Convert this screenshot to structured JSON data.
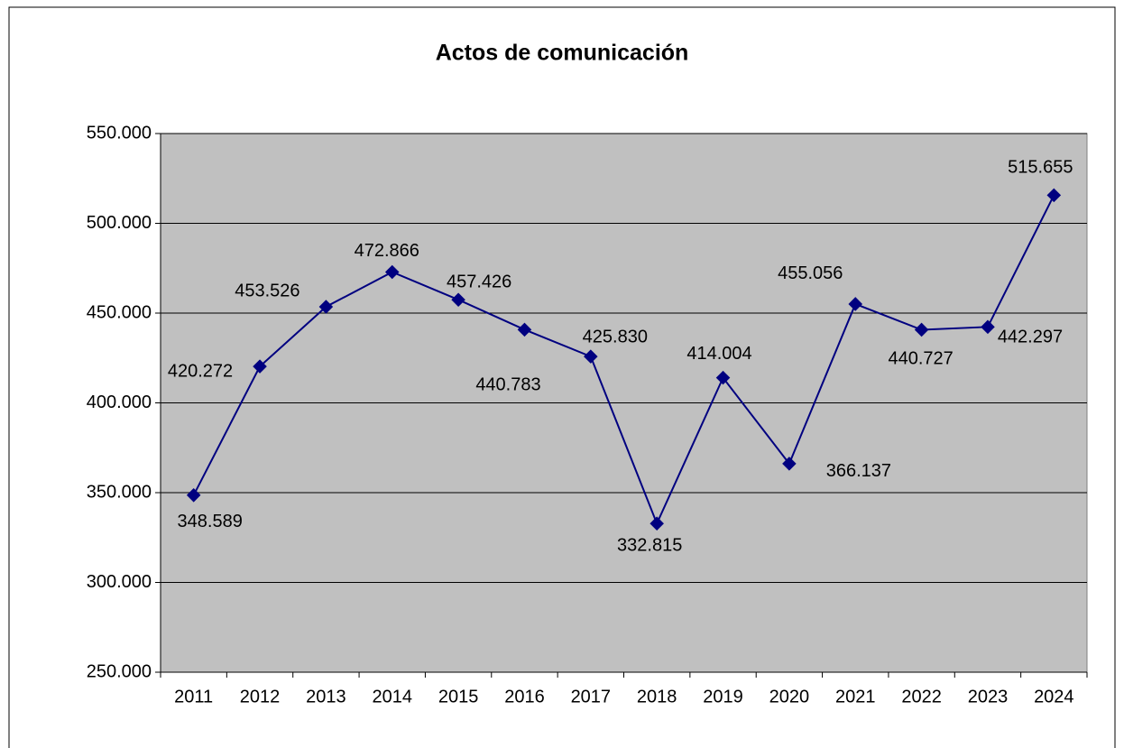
{
  "chart_data": {
    "type": "line",
    "title": "Actos de comunicación",
    "categories": [
      "2011",
      "2012",
      "2013",
      "2014",
      "2015",
      "2016",
      "2017",
      "2018",
      "2019",
      "2020",
      "2021",
      "2022",
      "2023",
      "2024"
    ],
    "series": [
      {
        "color": "#000080",
        "values": [
          348589,
          420272,
          453526,
          472866,
          457426,
          440783,
          425830,
          332815,
          414004,
          366137,
          455056,
          440727,
          442297,
          515655
        ],
        "value_labels": [
          "348.589",
          "420.272",
          "453.526",
          "472.866",
          "457.426",
          "440.783",
          "425.830",
          "332.815",
          "414.004",
          "366.137",
          "455.056",
          "440.727",
          "442.297",
          "515.655"
        ]
      }
    ],
    "ylim": [
      250000,
      550000
    ],
    "yticks": [
      {
        "value": 250000,
        "label": "250.000"
      },
      {
        "value": 300000,
        "label": "300.000"
      },
      {
        "value": 350000,
        "label": "350.000"
      },
      {
        "value": 400000,
        "label": "400.000"
      },
      {
        "value": 450000,
        "label": "450.000"
      },
      {
        "value": 500000,
        "label": "500.000"
      },
      {
        "value": 550000,
        "label": "550.000"
      }
    ],
    "grid": true
  }
}
